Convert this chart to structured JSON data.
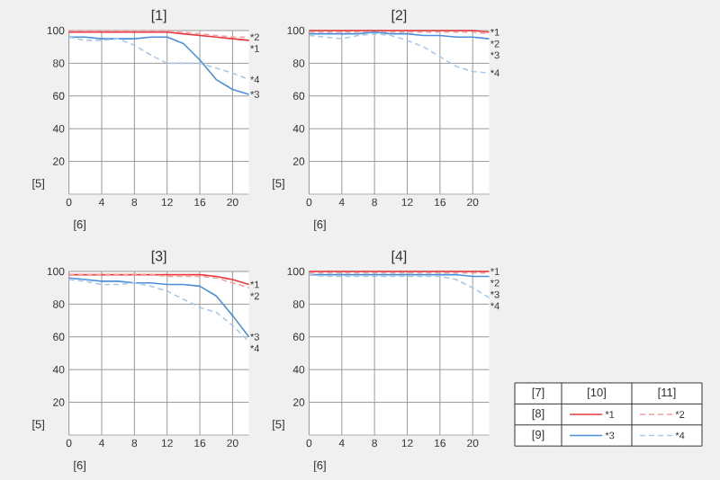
{
  "chart_data": [
    {
      "type": "line",
      "title": "[1]",
      "xlabel": "[6]",
      "ylabel": "[5]",
      "x": [
        0,
        2,
        4,
        6,
        8,
        10,
        12,
        14,
        16,
        18,
        20,
        22
      ],
      "xlim": [
        0,
        22
      ],
      "ylim": [
        0,
        100
      ],
      "xticks": [
        0,
        4,
        8,
        12,
        16,
        20
      ],
      "yticks": [
        20,
        40,
        60,
        80,
        100
      ],
      "grid": true,
      "series": [
        {
          "name": "*1",
          "color": "#e8383d",
          "line_style": "solid",
          "values": [
            99,
            99,
            99,
            99,
            99,
            99,
            99,
            98,
            97,
            96,
            95,
            94
          ]
        },
        {
          "name": "*2",
          "color": "#f4a0a0",
          "line_style": "dashed",
          "values": [
            100,
            100,
            100,
            100,
            100,
            100,
            100,
            99,
            98,
            97,
            96,
            96
          ]
        },
        {
          "name": "*3",
          "color": "#4a90d9",
          "line_style": "solid",
          "values": [
            96,
            96,
            95,
            95,
            95,
            96,
            96,
            92,
            82,
            70,
            64,
            61
          ]
        },
        {
          "name": "*4",
          "color": "#a8c8ec",
          "line_style": "dashed",
          "values": [
            96,
            94,
            94,
            95,
            91,
            85,
            80,
            80,
            80,
            77,
            74,
            70
          ]
        }
      ]
    },
    {
      "type": "line",
      "title": "[2]",
      "xlabel": "[6]",
      "ylabel": "[5]",
      "x": [
        0,
        2,
        4,
        6,
        8,
        10,
        12,
        14,
        16,
        18,
        20,
        22
      ],
      "xlim": [
        0,
        22
      ],
      "ylim": [
        0,
        100
      ],
      "xticks": [
        0,
        4,
        8,
        12,
        16,
        20
      ],
      "yticks": [
        20,
        40,
        60,
        80,
        100
      ],
      "grid": true,
      "series": [
        {
          "name": "*1",
          "color": "#e8383d",
          "line_style": "solid",
          "values": [
            100,
            100,
            100,
            100,
            100,
            100,
            100,
            100,
            100,
            100,
            100,
            99
          ]
        },
        {
          "name": "*2",
          "color": "#f4a0a0",
          "line_style": "dashed",
          "values": [
            99,
            99,
            99,
            99,
            99,
            99,
            99,
            99,
            99,
            99,
            99,
            98
          ]
        },
        {
          "name": "*3",
          "color": "#4a90d9",
          "line_style": "solid",
          "values": [
            98,
            98,
            98,
            98,
            99,
            98,
            98,
            97,
            97,
            96,
            96,
            95
          ]
        },
        {
          "name": "*4",
          "color": "#a8c8ec",
          "line_style": "dashed",
          "values": [
            97,
            96,
            95,
            97,
            98,
            97,
            94,
            90,
            84,
            78,
            75,
            74
          ]
        }
      ]
    },
    {
      "type": "line",
      "title": "[3]",
      "xlabel": "[6]",
      "ylabel": "[5]",
      "x": [
        0,
        2,
        4,
        6,
        8,
        10,
        12,
        14,
        16,
        18,
        20,
        22
      ],
      "xlim": [
        0,
        22
      ],
      "ylim": [
        0,
        100
      ],
      "xticks": [
        0,
        4,
        8,
        12,
        16,
        20
      ],
      "yticks": [
        20,
        40,
        60,
        80,
        100
      ],
      "grid": true,
      "series": [
        {
          "name": "*1",
          "color": "#e8383d",
          "line_style": "solid",
          "values": [
            98,
            98,
            98,
            98,
            98,
            98,
            98,
            98,
            98,
            97,
            95,
            92
          ]
        },
        {
          "name": "*2",
          "color": "#f4a0a0",
          "line_style": "dashed",
          "values": [
            98,
            98,
            98,
            98,
            98,
            98,
            97,
            97,
            97,
            96,
            93,
            90
          ]
        },
        {
          "name": "*3",
          "color": "#4a90d9",
          "line_style": "solid",
          "values": [
            96,
            95,
            94,
            94,
            93,
            93,
            92,
            92,
            91,
            85,
            73,
            60
          ]
        },
        {
          "name": "*4",
          "color": "#a8c8ec",
          "line_style": "dashed",
          "values": [
            95,
            94,
            92,
            92,
            93,
            91,
            88,
            83,
            78,
            75,
            67,
            57
          ]
        }
      ]
    },
    {
      "type": "line",
      "title": "[4]",
      "xlabel": "[6]",
      "ylabel": "[5]",
      "x": [
        0,
        2,
        4,
        6,
        8,
        10,
        12,
        14,
        16,
        18,
        20,
        22
      ],
      "xlim": [
        0,
        22
      ],
      "ylim": [
        0,
        100
      ],
      "xticks": [
        0,
        4,
        8,
        12,
        16,
        20
      ],
      "yticks": [
        20,
        40,
        60,
        80,
        100
      ],
      "grid": true,
      "legend": "right",
      "annotations": [
        "[7]",
        "[8]",
        "[9]",
        "[10]",
        "[11]"
      ],
      "series": [
        {
          "name": "*1",
          "color": "#e8383d",
          "line_style": "solid",
          "values": [
            100,
            100,
            100,
            100,
            100,
            100,
            100,
            100,
            100,
            100,
            100,
            100
          ]
        },
        {
          "name": "*2",
          "color": "#f4a0a0",
          "line_style": "dashed",
          "values": [
            99,
            99,
            99,
            99,
            99,
            99,
            99,
            99,
            99,
            99,
            99,
            99
          ]
        },
        {
          "name": "*3",
          "color": "#4a90d9",
          "line_style": "solid",
          "values": [
            98,
            98,
            98,
            98,
            98,
            98,
            98,
            98,
            98,
            98,
            97,
            97
          ]
        },
        {
          "name": "*4",
          "color": "#a8c8ec",
          "line_style": "dashed",
          "values": [
            98,
            97,
            97,
            97,
            97,
            97,
            97,
            97,
            97,
            95,
            90,
            84
          ]
        }
      ]
    }
  ]
}
